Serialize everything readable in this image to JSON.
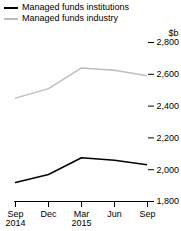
{
  "chart_data": {
    "type": "line",
    "categories": [
      "Sep\n2014",
      "Dec",
      "Mar\n2015",
      "Jun",
      "Sep"
    ],
    "series": [
      {
        "name": "Managed funds institutions",
        "color": "#000000",
        "values": [
          1920,
          1970,
          2075,
          2060,
          2030
        ]
      },
      {
        "name": "Managed funds industry",
        "color": "#bdbdbd",
        "values": [
          2450,
          2510,
          2640,
          2625,
          2590
        ]
      }
    ],
    "y_label": "$b",
    "ylim": [
      1800,
      2800
    ],
    "yticks": [
      1800,
      2000,
      2200,
      2400,
      2600,
      2800
    ],
    "grid": false,
    "legend": "top-left"
  }
}
